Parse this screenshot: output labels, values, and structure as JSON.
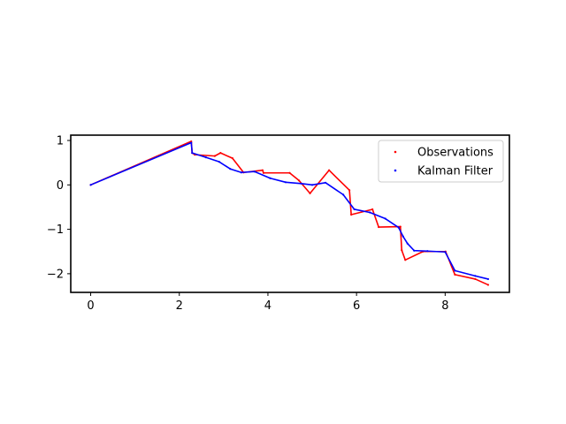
{
  "chart_data": {
    "type": "line",
    "title": "",
    "xlabel": "",
    "ylabel": "",
    "xlim": [
      -0.45,
      9.45
    ],
    "ylim": [
      -2.42,
      1.12
    ],
    "xticks": [
      0,
      2,
      4,
      6,
      8
    ],
    "yticks": [
      1,
      0,
      -1,
      -2
    ],
    "xtick_labels": [
      "0",
      "2",
      "4",
      "6",
      "8"
    ],
    "ytick_labels": [
      "1",
      "0",
      "−1",
      "−2"
    ],
    "grid": false,
    "legend_position": "top-right",
    "series": [
      {
        "name": "Observations",
        "color": "#ff0000",
        "marker": "dot",
        "x": [
          0.0,
          2.27,
          2.29,
          2.35,
          2.8,
          2.93,
          3.2,
          3.45,
          3.88,
          3.9,
          4.49,
          4.7,
          4.95,
          5.38,
          5.84,
          5.88,
          6.36,
          6.5,
          6.99,
          7.02,
          7.1,
          7.5,
          8.01,
          8.22,
          8.68,
          8.97
        ],
        "y": [
          0.0,
          0.98,
          0.72,
          0.68,
          0.65,
          0.72,
          0.6,
          0.28,
          0.33,
          0.27,
          0.27,
          0.1,
          -0.19,
          0.33,
          -0.12,
          -0.67,
          -0.55,
          -0.95,
          -0.94,
          -1.47,
          -1.69,
          -1.5,
          -1.5,
          -2.02,
          -2.12,
          -2.25
        ]
      },
      {
        "name": "Kalman Filter",
        "color": "#0000ff",
        "marker": "dot",
        "x": [
          0.0,
          2.27,
          2.29,
          2.6,
          2.9,
          3.15,
          3.4,
          3.7,
          4.05,
          4.4,
          4.75,
          5.0,
          5.3,
          5.7,
          5.95,
          6.3,
          6.65,
          6.95,
          7.05,
          7.15,
          7.3,
          7.6,
          8.0,
          8.22,
          8.68,
          8.97
        ],
        "y": [
          0.0,
          0.95,
          0.72,
          0.62,
          0.52,
          0.36,
          0.28,
          0.3,
          0.15,
          0.06,
          0.03,
          0.0,
          0.05,
          -0.22,
          -0.55,
          -0.62,
          -0.76,
          -0.96,
          -1.16,
          -1.32,
          -1.48,
          -1.49,
          -1.51,
          -1.93,
          -2.05,
          -2.12
        ]
      }
    ]
  }
}
